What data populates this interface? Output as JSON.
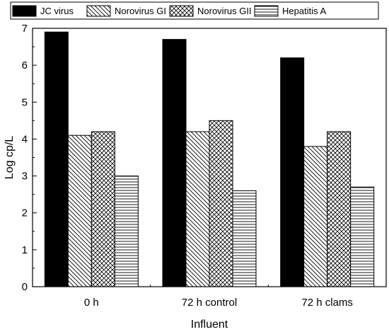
{
  "chart_data": {
    "type": "bar",
    "title": "",
    "xlabel": "Influent",
    "ylabel": "Log cp/L",
    "ylim": [
      0,
      7
    ],
    "yticks": [
      "0",
      "1",
      "2",
      "3",
      "4",
      "5",
      "6",
      "7"
    ],
    "categories": [
      "0 h",
      "72 h control",
      "72 h clams"
    ],
    "series": [
      {
        "name": "JC virus",
        "values": [
          6.9,
          6.7,
          6.2
        ],
        "fill": "solid-black"
      },
      {
        "name": "Norovirus GI",
        "values": [
          4.1,
          4.2,
          3.8
        ],
        "fill": "diagonal-hatch"
      },
      {
        "name": "Norovirus GII",
        "values": [
          4.2,
          4.5,
          4.2
        ],
        "fill": "cross-hatch"
      },
      {
        "name": "Hepatitis A",
        "values": [
          3.0,
          2.6,
          2.7
        ],
        "fill": "horizontal-lines"
      }
    ],
    "legend_position": "top",
    "grid": false
  }
}
